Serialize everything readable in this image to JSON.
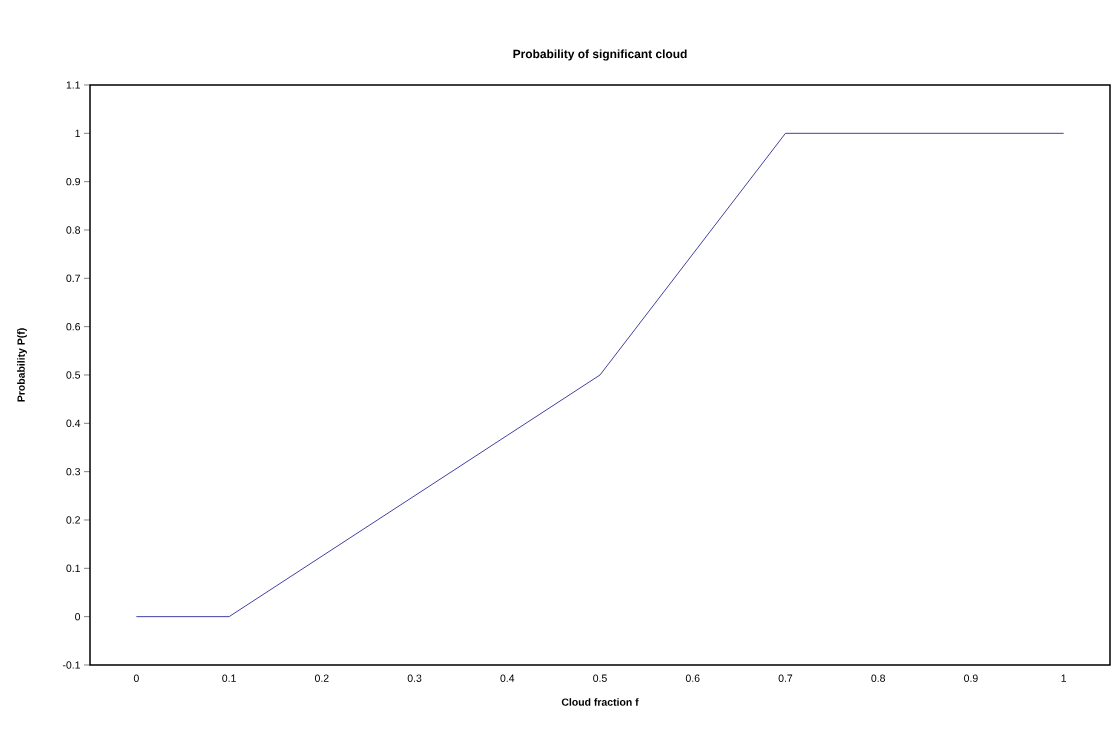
{
  "chart_data": {
    "type": "line",
    "title": "Probability of significant cloud",
    "xlabel": "Cloud fraction f",
    "ylabel": "Probability P(f)",
    "categories": [
      "0",
      "0.1",
      "0.2",
      "0.3",
      "0.4",
      "0.5",
      "0.6",
      "0.7",
      "0.8",
      "0.9",
      "1"
    ],
    "series": [
      {
        "color": "#000080",
        "values": [
          0,
          0,
          0.125,
          0.25,
          0.375,
          0.5,
          0.75,
          1,
          1,
          1,
          1
        ]
      }
    ],
    "ylim": [
      -0.1,
      1.1
    ],
    "yticks": [
      -0.1,
      0,
      0.1,
      0.2,
      0.3,
      0.4,
      0.5,
      0.6,
      0.7,
      0.8,
      0.9,
      1,
      1.1
    ],
    "grid": false
  }
}
